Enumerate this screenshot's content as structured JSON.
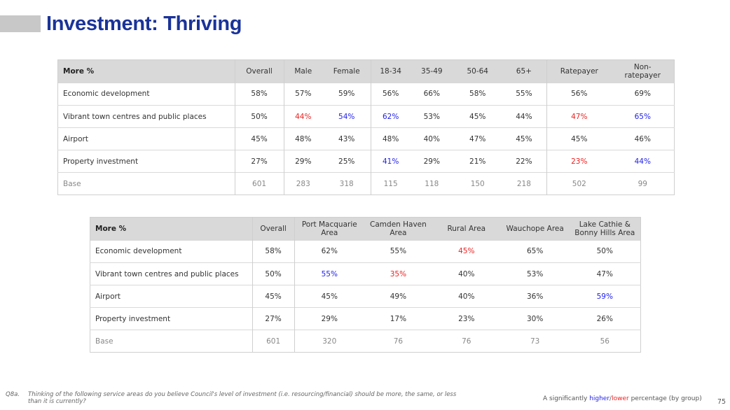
{
  "page": {
    "title": "Investment: Thriving",
    "question_id": "Q8a.",
    "question": "Thinking of the following service areas do you believe Council's level of investment (i.e. resourcing/financial) should be more, the same, or less than it is currently?",
    "legend": {
      "prefix": "A significantly ",
      "higher": "higher",
      "slash": "/",
      "lower": "lower",
      "suffix": " percentage (by group)"
    },
    "page_number": "75",
    "colors": {
      "title": "#1a3399",
      "higher": "#2222ee",
      "lower": "#ee2222",
      "header_bg": "#d9d9d9"
    }
  },
  "table1": {
    "corner": "More %",
    "headers": [
      "Overall",
      "Male",
      "Female",
      "18-34",
      "35-49",
      "50-64",
      "65+",
      "Ratepayer",
      "Non-\nratepayer"
    ],
    "rows": [
      {
        "label": "Economic development",
        "cells": [
          {
            "v": "58%"
          },
          {
            "v": "57%"
          },
          {
            "v": "59%"
          },
          {
            "v": "56%"
          },
          {
            "v": "66%"
          },
          {
            "v": "58%"
          },
          {
            "v": "55%"
          },
          {
            "v": "56%"
          },
          {
            "v": "69%"
          }
        ]
      },
      {
        "label": "Vibrant town centres and public places",
        "cells": [
          {
            "v": "50%"
          },
          {
            "v": "44%",
            "s": "lo"
          },
          {
            "v": "54%",
            "s": "hi"
          },
          {
            "v": "62%",
            "s": "hi"
          },
          {
            "v": "53%"
          },
          {
            "v": "45%"
          },
          {
            "v": "44%"
          },
          {
            "v": "47%",
            "s": "lo"
          },
          {
            "v": "65%",
            "s": "hi"
          }
        ]
      },
      {
        "label": "Airport",
        "cells": [
          {
            "v": "45%"
          },
          {
            "v": "48%"
          },
          {
            "v": "43%"
          },
          {
            "v": "48%"
          },
          {
            "v": "40%"
          },
          {
            "v": "47%"
          },
          {
            "v": "45%"
          },
          {
            "v": "45%"
          },
          {
            "v": "46%"
          }
        ]
      },
      {
        "label": "Property investment",
        "cells": [
          {
            "v": "27%"
          },
          {
            "v": "29%"
          },
          {
            "v": "25%"
          },
          {
            "v": "41%",
            "s": "hi"
          },
          {
            "v": "29%"
          },
          {
            "v": "21%"
          },
          {
            "v": "22%"
          },
          {
            "v": "23%",
            "s": "lo"
          },
          {
            "v": "44%",
            "s": "hi"
          }
        ]
      }
    ],
    "base": {
      "label": "Base",
      "values": [
        "601",
        "283",
        "318",
        "115",
        "118",
        "150",
        "218",
        "502",
        "99"
      ]
    }
  },
  "table2": {
    "corner": "More %",
    "headers": [
      "Overall",
      "Port Macquarie\nArea",
      "Camden Haven\nArea",
      "Rural Area",
      "Wauchope Area",
      "Lake Cathie &\nBonny Hills Area"
    ],
    "rows": [
      {
        "label": "Economic development",
        "cells": [
          {
            "v": "58%"
          },
          {
            "v": "62%"
          },
          {
            "v": "55%"
          },
          {
            "v": "45%",
            "s": "lo"
          },
          {
            "v": "65%"
          },
          {
            "v": "50%"
          }
        ]
      },
      {
        "label": "Vibrant town centres and public places",
        "cells": [
          {
            "v": "50%"
          },
          {
            "v": "55%",
            "s": "hi"
          },
          {
            "v": "35%",
            "s": "lo"
          },
          {
            "v": "40%"
          },
          {
            "v": "53%"
          },
          {
            "v": "47%"
          }
        ]
      },
      {
        "label": "Airport",
        "cells": [
          {
            "v": "45%"
          },
          {
            "v": "45%"
          },
          {
            "v": "49%"
          },
          {
            "v": "40%"
          },
          {
            "v": "36%"
          },
          {
            "v": "59%",
            "s": "hi"
          }
        ]
      },
      {
        "label": "Property investment",
        "cells": [
          {
            "v": "27%"
          },
          {
            "v": "29%"
          },
          {
            "v": "17%"
          },
          {
            "v": "23%"
          },
          {
            "v": "30%"
          },
          {
            "v": "26%"
          }
        ]
      }
    ],
    "base": {
      "label": "Base",
      "values": [
        "601",
        "320",
        "76",
        "76",
        "73",
        "56"
      ]
    }
  }
}
